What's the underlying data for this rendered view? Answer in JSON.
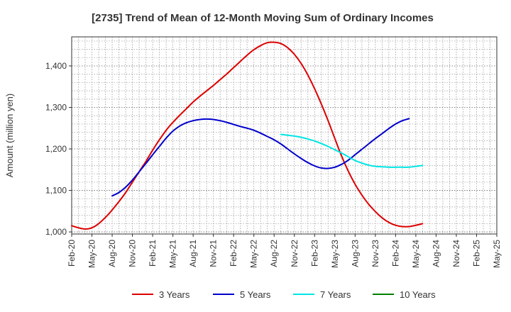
{
  "chart_data": {
    "type": "line",
    "title": "[2735]  Trend of Mean of 12-Month Moving Sum of Ordinary Incomes",
    "xlabel": "",
    "ylabel": "Amount (million yen)",
    "ylim": [
      995,
      1470
    ],
    "y_ticks": [
      1000,
      1100,
      1200,
      1300,
      1400
    ],
    "y_tick_labels": [
      "1,000",
      "1,100",
      "1,200",
      "1,300",
      "1,400"
    ],
    "x_ticks": [
      "Feb-20",
      "May-20",
      "Aug-20",
      "Nov-20",
      "Feb-21",
      "May-21",
      "Aug-21",
      "Nov-21",
      "Feb-22",
      "May-22",
      "Aug-22",
      "Nov-22",
      "Feb-23",
      "May-23",
      "Aug-23",
      "Nov-23",
      "Feb-24",
      "May-24",
      "Aug-24",
      "Nov-24",
      "Feb-25",
      "May-25"
    ],
    "grid": true,
    "legend_position": "bottom",
    "series": [
      {
        "name": "3 Years",
        "color": "#dd0000",
        "points": [
          [
            0,
            1015
          ],
          [
            1,
            1010
          ],
          [
            2,
            1007
          ],
          [
            3,
            1010
          ],
          [
            4,
            1020
          ],
          [
            5,
            1035
          ],
          [
            6,
            1053
          ],
          [
            7,
            1073
          ],
          [
            8,
            1095
          ],
          [
            9,
            1120
          ],
          [
            10,
            1145
          ],
          [
            11,
            1170
          ],
          [
            12,
            1197
          ],
          [
            13,
            1222
          ],
          [
            14,
            1245
          ],
          [
            15,
            1264
          ],
          [
            16,
            1281
          ],
          [
            17,
            1297
          ],
          [
            18,
            1313
          ],
          [
            19,
            1327
          ],
          [
            20,
            1340
          ],
          [
            21,
            1353
          ],
          [
            22,
            1367
          ],
          [
            23,
            1381
          ],
          [
            24,
            1396
          ],
          [
            25,
            1411
          ],
          [
            26,
            1426
          ],
          [
            27,
            1439
          ],
          [
            28,
            1449
          ],
          [
            29,
            1456
          ],
          [
            30,
            1457
          ],
          [
            31,
            1454
          ],
          [
            32,
            1444
          ],
          [
            33,
            1428
          ],
          [
            34,
            1406
          ],
          [
            35,
            1378
          ],
          [
            36,
            1345
          ],
          [
            37,
            1308
          ],
          [
            38,
            1268
          ],
          [
            39,
            1225
          ],
          [
            40,
            1183
          ],
          [
            41,
            1146
          ],
          [
            42,
            1115
          ],
          [
            43,
            1089
          ],
          [
            44,
            1067
          ],
          [
            45,
            1049
          ],
          [
            46,
            1034
          ],
          [
            47,
            1023
          ],
          [
            48,
            1016
          ],
          [
            49,
            1013
          ],
          [
            50,
            1013
          ],
          [
            51,
            1016
          ],
          [
            52,
            1020
          ]
        ]
      },
      {
        "name": "5 Years",
        "color": "#0000cc",
        "points": [
          [
            6,
            1087
          ],
          [
            7,
            1095
          ],
          [
            8,
            1108
          ],
          [
            9,
            1125
          ],
          [
            10,
            1145
          ],
          [
            11,
            1165
          ],
          [
            12,
            1186
          ],
          [
            13,
            1206
          ],
          [
            14,
            1226
          ],
          [
            15,
            1243
          ],
          [
            16,
            1255
          ],
          [
            17,
            1263
          ],
          [
            18,
            1268
          ],
          [
            19,
            1271
          ],
          [
            20,
            1272
          ],
          [
            21,
            1271
          ],
          [
            22,
            1268
          ],
          [
            23,
            1264
          ],
          [
            24,
            1259
          ],
          [
            25,
            1254
          ],
          [
            26,
            1250
          ],
          [
            27,
            1245
          ],
          [
            28,
            1238
          ],
          [
            29,
            1230
          ],
          [
            30,
            1222
          ],
          [
            31,
            1212
          ],
          [
            32,
            1200
          ],
          [
            33,
            1188
          ],
          [
            34,
            1177
          ],
          [
            35,
            1167
          ],
          [
            36,
            1159
          ],
          [
            37,
            1154
          ],
          [
            38,
            1153
          ],
          [
            39,
            1156
          ],
          [
            40,
            1163
          ],
          [
            41,
            1173
          ],
          [
            42,
            1186
          ],
          [
            43,
            1199
          ],
          [
            44,
            1212
          ],
          [
            45,
            1225
          ],
          [
            46,
            1237
          ],
          [
            47,
            1249
          ],
          [
            48,
            1260
          ],
          [
            49,
            1268
          ],
          [
            50,
            1273
          ]
        ]
      },
      {
        "name": "7 Years",
        "color": "#00e5e5",
        "points": [
          [
            31,
            1235
          ],
          [
            32,
            1233
          ],
          [
            33,
            1231
          ],
          [
            34,
            1228
          ],
          [
            35,
            1224
          ],
          [
            36,
            1219
          ],
          [
            37,
            1213
          ],
          [
            38,
            1206
          ],
          [
            39,
            1198
          ],
          [
            40,
            1190
          ],
          [
            41,
            1181
          ],
          [
            42,
            1172
          ],
          [
            43,
            1166
          ],
          [
            44,
            1161
          ],
          [
            45,
            1158
          ],
          [
            46,
            1157
          ],
          [
            47,
            1156
          ],
          [
            48,
            1156
          ],
          [
            49,
            1156
          ],
          [
            50,
            1156
          ],
          [
            51,
            1158
          ],
          [
            52,
            1160
          ]
        ]
      },
      {
        "name": "10 Years",
        "color": "#008000",
        "points": []
      }
    ]
  }
}
